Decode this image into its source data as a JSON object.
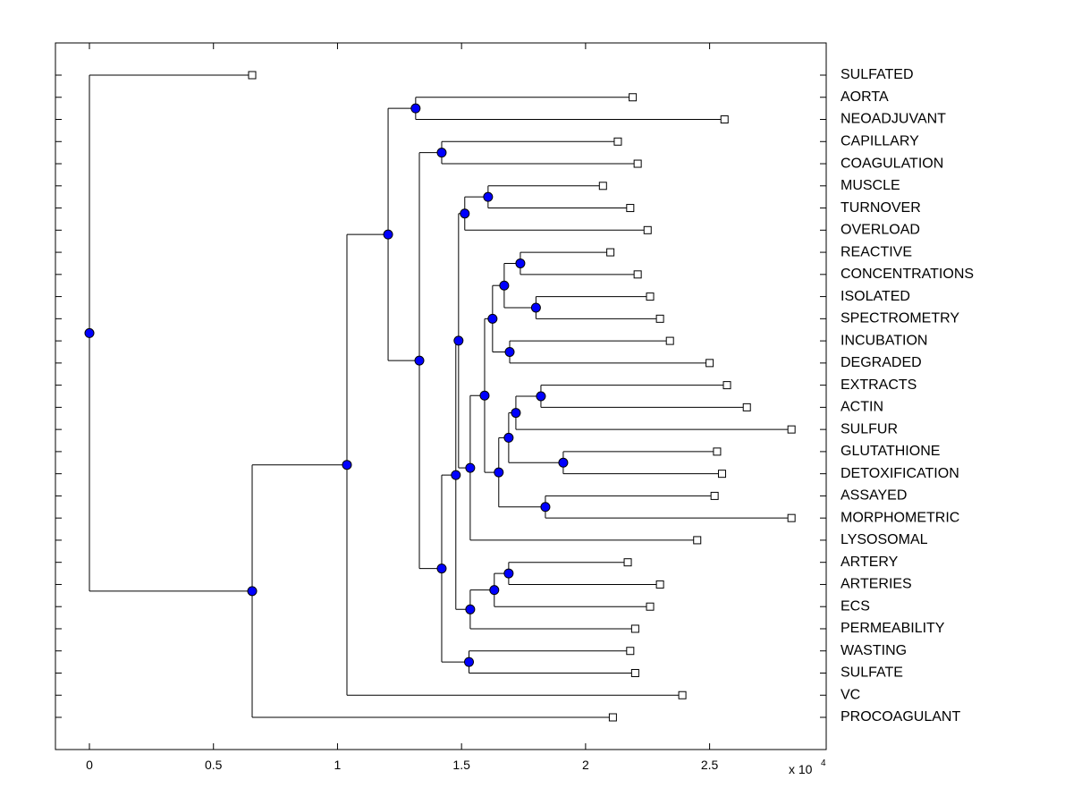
{
  "chart_data": {
    "type": "dendrogram",
    "xlim": [
      -0.137,
      2.97
    ],
    "xticks": [
      0,
      0.5,
      1,
      1.5,
      2,
      2.5
    ],
    "x_multiplier": {
      "base": "x 10",
      "exponent": "4"
    },
    "node_color": "#0000ff",
    "tree": {
      "x": 0,
      "children": [
        {
          "label": "SULFATED",
          "x": 0.656
        },
        {
          "x": 0.656,
          "children": [
            {
              "x": 1.038,
              "children": [
                {
                  "x": 1.204,
                  "children": [
                    {
                      "x": 1.315,
                      "children": [
                        {
                          "label": "AORTA",
                          "x": 2.19
                        },
                        {
                          "label": "NEOADJUVANT",
                          "x": 2.56
                        }
                      ]
                    },
                    {
                      "x": 1.33,
                      "children": [
                        {
                          "x": 1.42,
                          "children": [
                            {
                              "label": "CAPILLARY",
                              "x": 2.13
                            },
                            {
                              "label": "COAGULATION",
                              "x": 2.21
                            }
                          ]
                        },
                        {
                          "x": 1.42,
                          "children": [
                            {
                              "x": 1.477,
                              "children": [
                                {
                                  "x": 1.488,
                                  "children": [
                                    {
                                      "x": 1.513,
                                      "children": [
                                        {
                                          "x": 1.607,
                                          "children": [
                                            {
                                              "label": "MUSCLE",
                                              "x": 2.07
                                            },
                                            {
                                              "label": "TURNOVER",
                                              "x": 2.18
                                            }
                                          ]
                                        },
                                        {
                                          "label": "OVERLOAD",
                                          "x": 2.25
                                        }
                                      ]
                                    },
                                    {
                                      "x": 1.535,
                                      "children": [
                                        {
                                          "x": 1.593,
                                          "children": [
                                            {
                                              "x": 1.625,
                                              "children": [
                                                {
                                                  "x": 1.672,
                                                  "children": [
                                                    {
                                                      "x": 1.737,
                                                      "children": [
                                                        {
                                                          "label": "REACTIVE",
                                                          "x": 2.1
                                                        },
                                                        {
                                                          "label": "CONCENTRATIONS",
                                                          "x": 2.21
                                                        }
                                                      ]
                                                    },
                                                    {
                                                      "x": 1.8,
                                                      "children": [
                                                        {
                                                          "label": "ISOLATED",
                                                          "x": 2.26
                                                        },
                                                        {
                                                          "label": "SPECTROMETRY",
                                                          "x": 2.3
                                                        }
                                                      ]
                                                    }
                                                  ]
                                                },
                                                {
                                                  "x": 1.694,
                                                  "children": [
                                                    {
                                                      "label": "INCUBATION",
                                                      "x": 2.34
                                                    },
                                                    {
                                                      "label": "DEGRADED",
                                                      "x": 2.5
                                                    }
                                                  ]
                                                }
                                              ]
                                            },
                                            {
                                              "x": 1.65,
                                              "children": [
                                                {
                                                  "x": 1.69,
                                                  "children": [
                                                    {
                                                      "x": 1.719,
                                                      "children": [
                                                        {
                                                          "x": 1.82,
                                                          "children": [
                                                            {
                                                              "label": "EXTRACTS",
                                                              "x": 2.57
                                                            },
                                                            {
                                                              "label": "ACTIN",
                                                              "x": 2.65
                                                            }
                                                          ]
                                                        },
                                                        {
                                                          "label": "SULFUR",
                                                          "x": 2.83
                                                        }
                                                      ]
                                                    },
                                                    {
                                                      "x": 1.91,
                                                      "children": [
                                                        {
                                                          "label": "GLUTATHIONE",
                                                          "x": 2.53
                                                        },
                                                        {
                                                          "label": "DETOXIFICATION",
                                                          "x": 2.55
                                                        }
                                                      ]
                                                    }
                                                  ]
                                                },
                                                {
                                                  "x": 1.838,
                                                  "children": [
                                                    {
                                                      "label": "ASSAYED",
                                                      "x": 2.52
                                                    },
                                                    {
                                                      "label": "MORPHOMETRIC",
                                                      "x": 2.83
                                                    }
                                                  ]
                                                }
                                              ]
                                            }
                                          ]
                                        },
                                        {
                                          "label": "LYSOSOMAL",
                                          "x": 2.45
                                        }
                                      ]
                                    }
                                  ]
                                },
                                {
                                  "x": 1.535,
                                  "children": [
                                    {
                                      "x": 1.632,
                                      "children": [
                                        {
                                          "x": 1.69,
                                          "children": [
                                            {
                                              "label": "ARTERY",
                                              "x": 2.17
                                            },
                                            {
                                              "label": "ARTERIES",
                                              "x": 2.3
                                            }
                                          ]
                                        },
                                        {
                                          "label": "ECS",
                                          "x": 2.26
                                        }
                                      ]
                                    },
                                    {
                                      "label": "PERMEABILITY",
                                      "x": 2.2
                                    }
                                  ]
                                }
                              ]
                            },
                            {
                              "x": 1.53,
                              "children": [
                                {
                                  "label": "WASTING",
                                  "x": 2.18
                                },
                                {
                                  "label": "SULFATE",
                                  "x": 2.2
                                }
                              ]
                            }
                          ]
                        }
                      ]
                    }
                  ]
                },
                {
                  "label": "VC",
                  "x": 2.39
                }
              ]
            },
            {
              "label": "PROCOAGULANT",
              "x": 2.11
            }
          ]
        }
      ]
    }
  }
}
